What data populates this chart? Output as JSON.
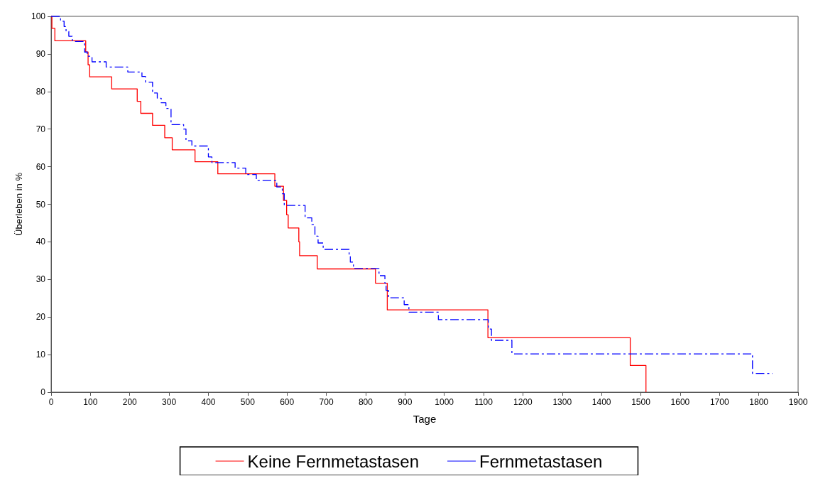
{
  "chart_data": {
    "type": "step",
    "xlabel": "Tage",
    "ylabel": "Überleben in %",
    "xlim": [
      0,
      1900
    ],
    "xticks": [
      0,
      100,
      200,
      300,
      400,
      500,
      600,
      700,
      800,
      900,
      1000,
      1100,
      1200,
      1300,
      1400,
      1500,
      1600,
      1700,
      1800,
      1900
    ],
    "ylim": [
      0,
      100
    ],
    "yticks": [
      0,
      10,
      20,
      30,
      40,
      50,
      60,
      70,
      80,
      90,
      100
    ],
    "grid": false,
    "legend": "bottom",
    "marker": "none",
    "series": [
      {
        "name": "Keine Fernmetastasen",
        "color": "#ff0000",
        "line_style": "solid",
        "x": [
          0,
          2,
          9.5,
          88,
          94,
          98,
          154,
          219,
          228,
          258,
          289,
          308,
          366,
          424,
          569,
          591,
          599,
          603,
          630,
          632,
          677,
          825,
          855,
          1111,
          1473,
          1513
        ],
        "values": [
          100,
          96.8,
          93.5,
          90.5,
          87.1,
          83.9,
          80.7,
          77.4,
          74.2,
          71,
          67.7,
          64.5,
          61.3,
          58.1,
          54.8,
          51,
          47.2,
          43.7,
          40,
          36.3,
          32.8,
          29,
          21.9,
          14.5,
          7.1,
          0
        ]
      },
      {
        "name": "Fernmetastasen",
        "color": "#0000ff",
        "line_style": "dashed",
        "x": [
          0,
          24,
          33,
          38,
          45,
          54,
          85,
          92,
          104,
          140,
          195,
          231,
          240,
          258,
          270,
          280,
          292,
          305,
          337,
          343,
          358,
          400,
          409,
          468,
          495,
          522,
          574,
          588,
          593,
          646,
          663,
          671,
          679,
          692,
          758,
          761,
          769,
          834,
          849,
          852,
          858,
          898,
          910,
          985,
          1112,
          1120,
          1172,
          1784,
          1835
        ],
        "values": [
          100,
          98.7,
          97.3,
          96,
          94.7,
          93.3,
          90.5,
          89.4,
          87.9,
          86.5,
          85.2,
          84,
          82.5,
          79.6,
          78.2,
          77,
          75.5,
          71.2,
          70,
          66.9,
          65.5,
          62.6,
          61.1,
          59.6,
          57.9,
          56.3,
          54.6,
          52.8,
          49.7,
          46.4,
          44.6,
          41.5,
          39.7,
          38,
          36.3,
          34.6,
          32.9,
          31,
          29,
          27.1,
          25.1,
          23.3,
          21.3,
          19.3,
          16.8,
          13.8,
          10.2,
          5,
          5
        ]
      }
    ]
  }
}
